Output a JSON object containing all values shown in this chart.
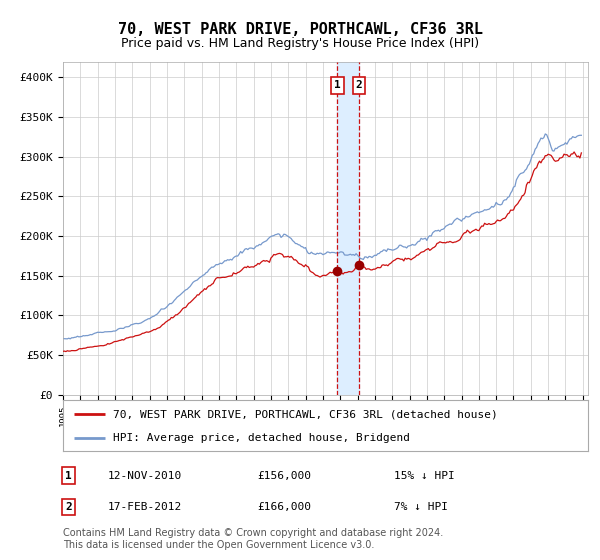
{
  "title": "70, WEST PARK DRIVE, PORTHCAWL, CF36 3RL",
  "subtitle": "Price paid vs. HM Land Registry's House Price Index (HPI)",
  "ylim": [
    0,
    420000
  ],
  "yticks": [
    0,
    50000,
    100000,
    150000,
    200000,
    250000,
    300000,
    350000,
    400000
  ],
  "ytick_labels": [
    "£0",
    "£50K",
    "£100K",
    "£150K",
    "£200K",
    "£250K",
    "£300K",
    "£350K",
    "£400K"
  ],
  "hpi_color": "#7799cc",
  "price_color": "#cc1111",
  "marker_color": "#990000",
  "vspan_color": "#ddeeff",
  "vline_color": "#cc1111",
  "grid_color": "#cccccc",
  "background_color": "#ffffff",
  "transaction1": {
    "date_label": "12-NOV-2010",
    "price": 156000,
    "label": "1",
    "pct": "15%",
    "direction": "↓"
  },
  "transaction2": {
    "date_label": "17-FEB-2012",
    "price": 166000,
    "label": "2",
    "pct": "7%",
    "direction": "↓"
  },
  "legend_line1": "70, WEST PARK DRIVE, PORTHCAWL, CF36 3RL (detached house)",
  "legend_line2": "HPI: Average price, detached house, Bridgend",
  "footnote": "Contains HM Land Registry data © Crown copyright and database right 2024.\nThis data is licensed under the Open Government Licence v3.0.",
  "title_fontsize": 11,
  "subtitle_fontsize": 9,
  "tick_fontsize": 8,
  "legend_fontsize": 8,
  "footnote_fontsize": 7,
  "xstart": 1995,
  "xend": 2025,
  "t1_year": 2010.875,
  "t2_year": 2012.125
}
